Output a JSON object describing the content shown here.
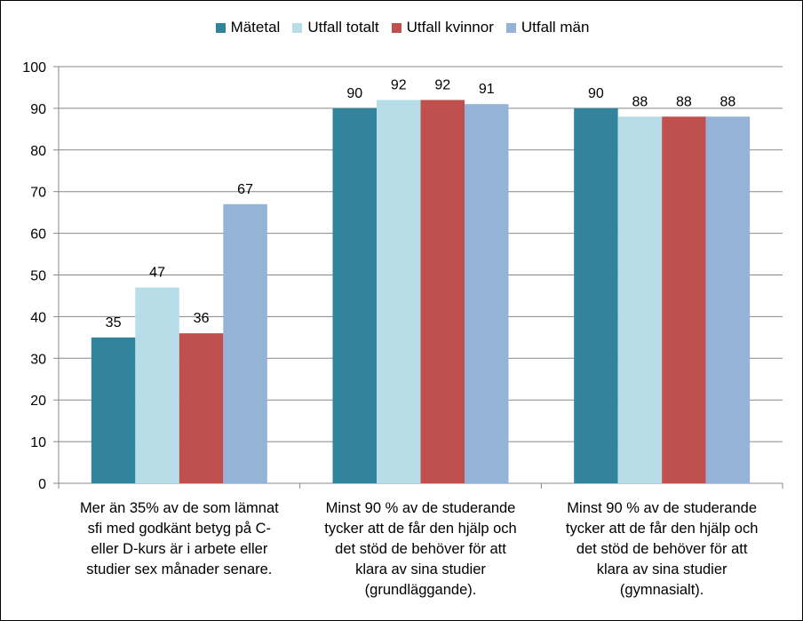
{
  "chart_data": {
    "type": "bar",
    "categories": [
      "Mer än 35% av de som lämnat sfi med godkänt betyg på C-eller D-kurs är i arbete eller studier sex månader senare.",
      "Minst 90 % av de studerande tycker att de får den hjälp och det stöd de behöver för att klara av sina studier (grundläggande).",
      "Minst 90 % av de studerande tycker att de får den hjälp och det stöd de behöver för att klara av sina studier (gymnasialt)."
    ],
    "category_lines": [
      [
        "Mer än 35% av de som lämnat",
        "sfi med godkänt betyg på C-",
        "eller D-kurs är i arbete eller",
        "studier sex månader senare."
      ],
      [
        "Minst 90 % av de studerande",
        "tycker att de får den hjälp och",
        "det stöd de behöver för att",
        "klara av sina studier",
        "(grundläggande)."
      ],
      [
        "Minst 90 % av de studerande",
        "tycker att de får den hjälp och",
        "det stöd de behöver för att",
        "klara av sina studier",
        "(gymnasialt)."
      ]
    ],
    "series": [
      {
        "name": "Mätetal",
        "values": [
          35,
          90,
          90
        ],
        "color": "#31849B"
      },
      {
        "name": "Utfall totalt",
        "values": [
          47,
          92,
          88
        ],
        "color": "#B7DEE8"
      },
      {
        "name": "Utfall kvinnor",
        "values": [
          36,
          92,
          88
        ],
        "color": "#C0504D"
      },
      {
        "name": "Utfall män",
        "values": [
          67,
          91,
          88
        ],
        "color": "#95B3D7"
      }
    ],
    "ylim": [
      0,
      100
    ],
    "yticks": [
      0,
      10,
      20,
      30,
      40,
      50,
      60,
      70,
      80,
      90,
      100
    ],
    "grid": true,
    "legend_position": "top"
  }
}
